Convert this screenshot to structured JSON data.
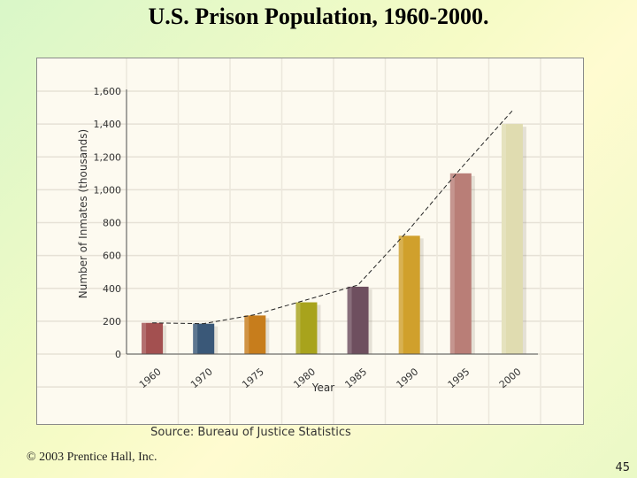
{
  "slide": {
    "title": "U.S. Prison Population, 1960-2000.",
    "source": "Source: Bureau of Justice Statistics",
    "copyright": "© 2003 Prentice Hall, Inc.",
    "page_number": "45"
  },
  "chart_data": {
    "type": "bar",
    "title": "U.S. Prison Population, 1960-2000.",
    "xlabel": "Year",
    "ylabel": "Number of Inmates (thousands)",
    "categories": [
      "1960",
      "1970",
      "1975",
      "1980",
      "1985",
      "1990",
      "1995",
      "2000"
    ],
    "values": [
      190,
      185,
      235,
      315,
      410,
      720,
      1100,
      1400
    ],
    "trend_values": [
      190,
      185,
      240,
      330,
      420,
      760,
      1130,
      1480
    ],
    "ylim": [
      0,
      1600
    ],
    "yticks": [
      0,
      200,
      400,
      600,
      800,
      1000,
      1200,
      1400,
      1600
    ],
    "ytick_labels": [
      "0",
      "200",
      "400",
      "600",
      "800",
      "1,000",
      "1,200",
      "1,400",
      "1,600"
    ],
    "colors": [
      "#a35050",
      "#3a5878",
      "#c77d1c",
      "#a8a31c",
      "#6e4f5f",
      "#d0a02c",
      "#b97e77",
      "#e0dcb0"
    ],
    "grid": true
  }
}
